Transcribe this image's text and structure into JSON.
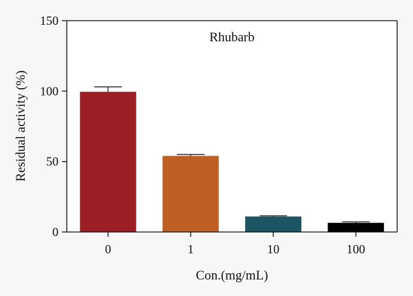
{
  "chart_data": {
    "type": "bar",
    "title": "Rhubarb",
    "xlabel": "Con.(mg/mL)",
    "ylabel": "Residual activity (%)",
    "categories": [
      "0",
      "1",
      "10",
      "100"
    ],
    "values": [
      99.5,
      54,
      11,
      6.5
    ],
    "errors": [
      3.5,
      1,
      0.5,
      0.7
    ],
    "colors": [
      "#9b1f24",
      "#bf5f26",
      "#1d5464",
      "#000000"
    ],
    "ylim": [
      0,
      150
    ],
    "yticks": [
      "0",
      "50",
      "100",
      "150"
    ],
    "grid": false,
    "legend": "none"
  }
}
